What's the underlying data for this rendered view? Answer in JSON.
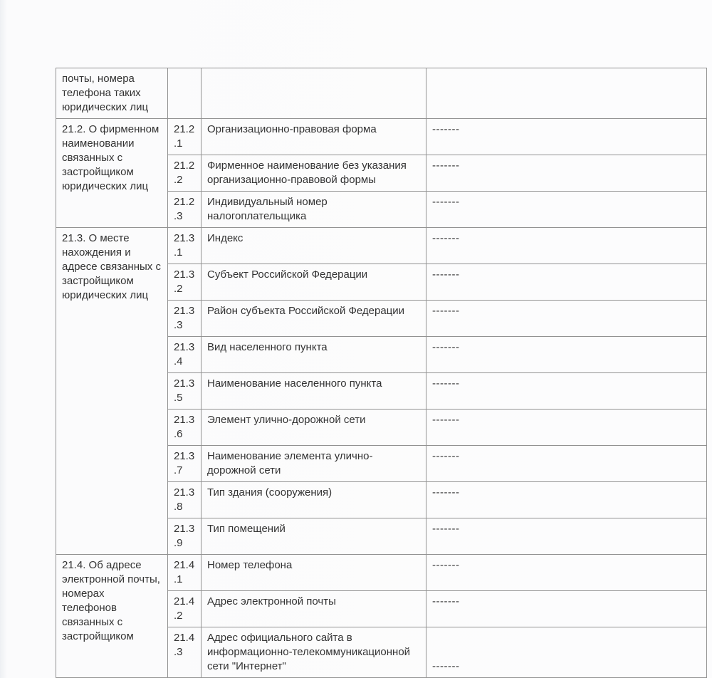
{
  "colors": {
    "text": "#333333",
    "table_border": "#929292",
    "page_background": "#fcfcfd"
  },
  "table": {
    "sections": [
      {
        "title": "почты, номера телефона таких юридических лиц",
        "continuation": true,
        "rows": [
          {
            "num": "",
            "desc": "",
            "value": ""
          }
        ]
      },
      {
        "title": "21.2. О фирменном наименовании связанных с застройщиком юридических лиц",
        "continuation": false,
        "rows": [
          {
            "num": "21.2.1",
            "desc": "Организационно-правовая форма",
            "value": "-------"
          },
          {
            "num": "21.2.2",
            "desc": "Фирменное наименование без указания организационно-правовой формы",
            "value": "-------"
          },
          {
            "num": "21.2.3",
            "desc": "Индивидуальный номер налогоплательщика",
            "value": "-------"
          }
        ]
      },
      {
        "title": "21.3. О месте нахождения и адресе связанных с застройщиком юридических лиц",
        "continuation": false,
        "rows": [
          {
            "num": "21.3.1",
            "desc": "Индекс",
            "value": "-------"
          },
          {
            "num": "21.3.2",
            "desc": "Субъект Российской Федерации",
            "value": "-------"
          },
          {
            "num": "21.3.3",
            "desc": "Район субъекта Российской Федерации",
            "value": "-------"
          },
          {
            "num": "21.3.4",
            "desc": "Вид населенного пункта",
            "value": "-------"
          },
          {
            "num": "21.3.5",
            "desc": "Наименование населенного пункта",
            "value": "-------"
          },
          {
            "num": "21.3.6",
            "desc": "Элемент улично-дорожной сети",
            "value": "-------"
          },
          {
            "num": "21.3.7",
            "desc": "Наименование элемента улично-дорожной сети",
            "value": "-------"
          },
          {
            "num": "21.3.8",
            "desc": "Тип здания (сооружения)",
            "value": "-------"
          },
          {
            "num": "21.3.9",
            "desc": "Тип помещений",
            "value": "-------"
          }
        ]
      },
      {
        "title": "21.4. Об адресе электронной почты, номерах телефонов связанных с застройщиком",
        "continuation": false,
        "rows": [
          {
            "num": "21.4.1",
            "desc": "Номер телефона",
            "value": "-------"
          },
          {
            "num": "21.4.2",
            "desc": "Адрес электронной почты",
            "value": "-------"
          },
          {
            "num": "21.4.3",
            "desc": "Адрес официального сайта в информационно-телекоммуникационной сети \"Интернет\"",
            "value": "-------",
            "value_align": "bottom"
          }
        ]
      }
    ]
  }
}
